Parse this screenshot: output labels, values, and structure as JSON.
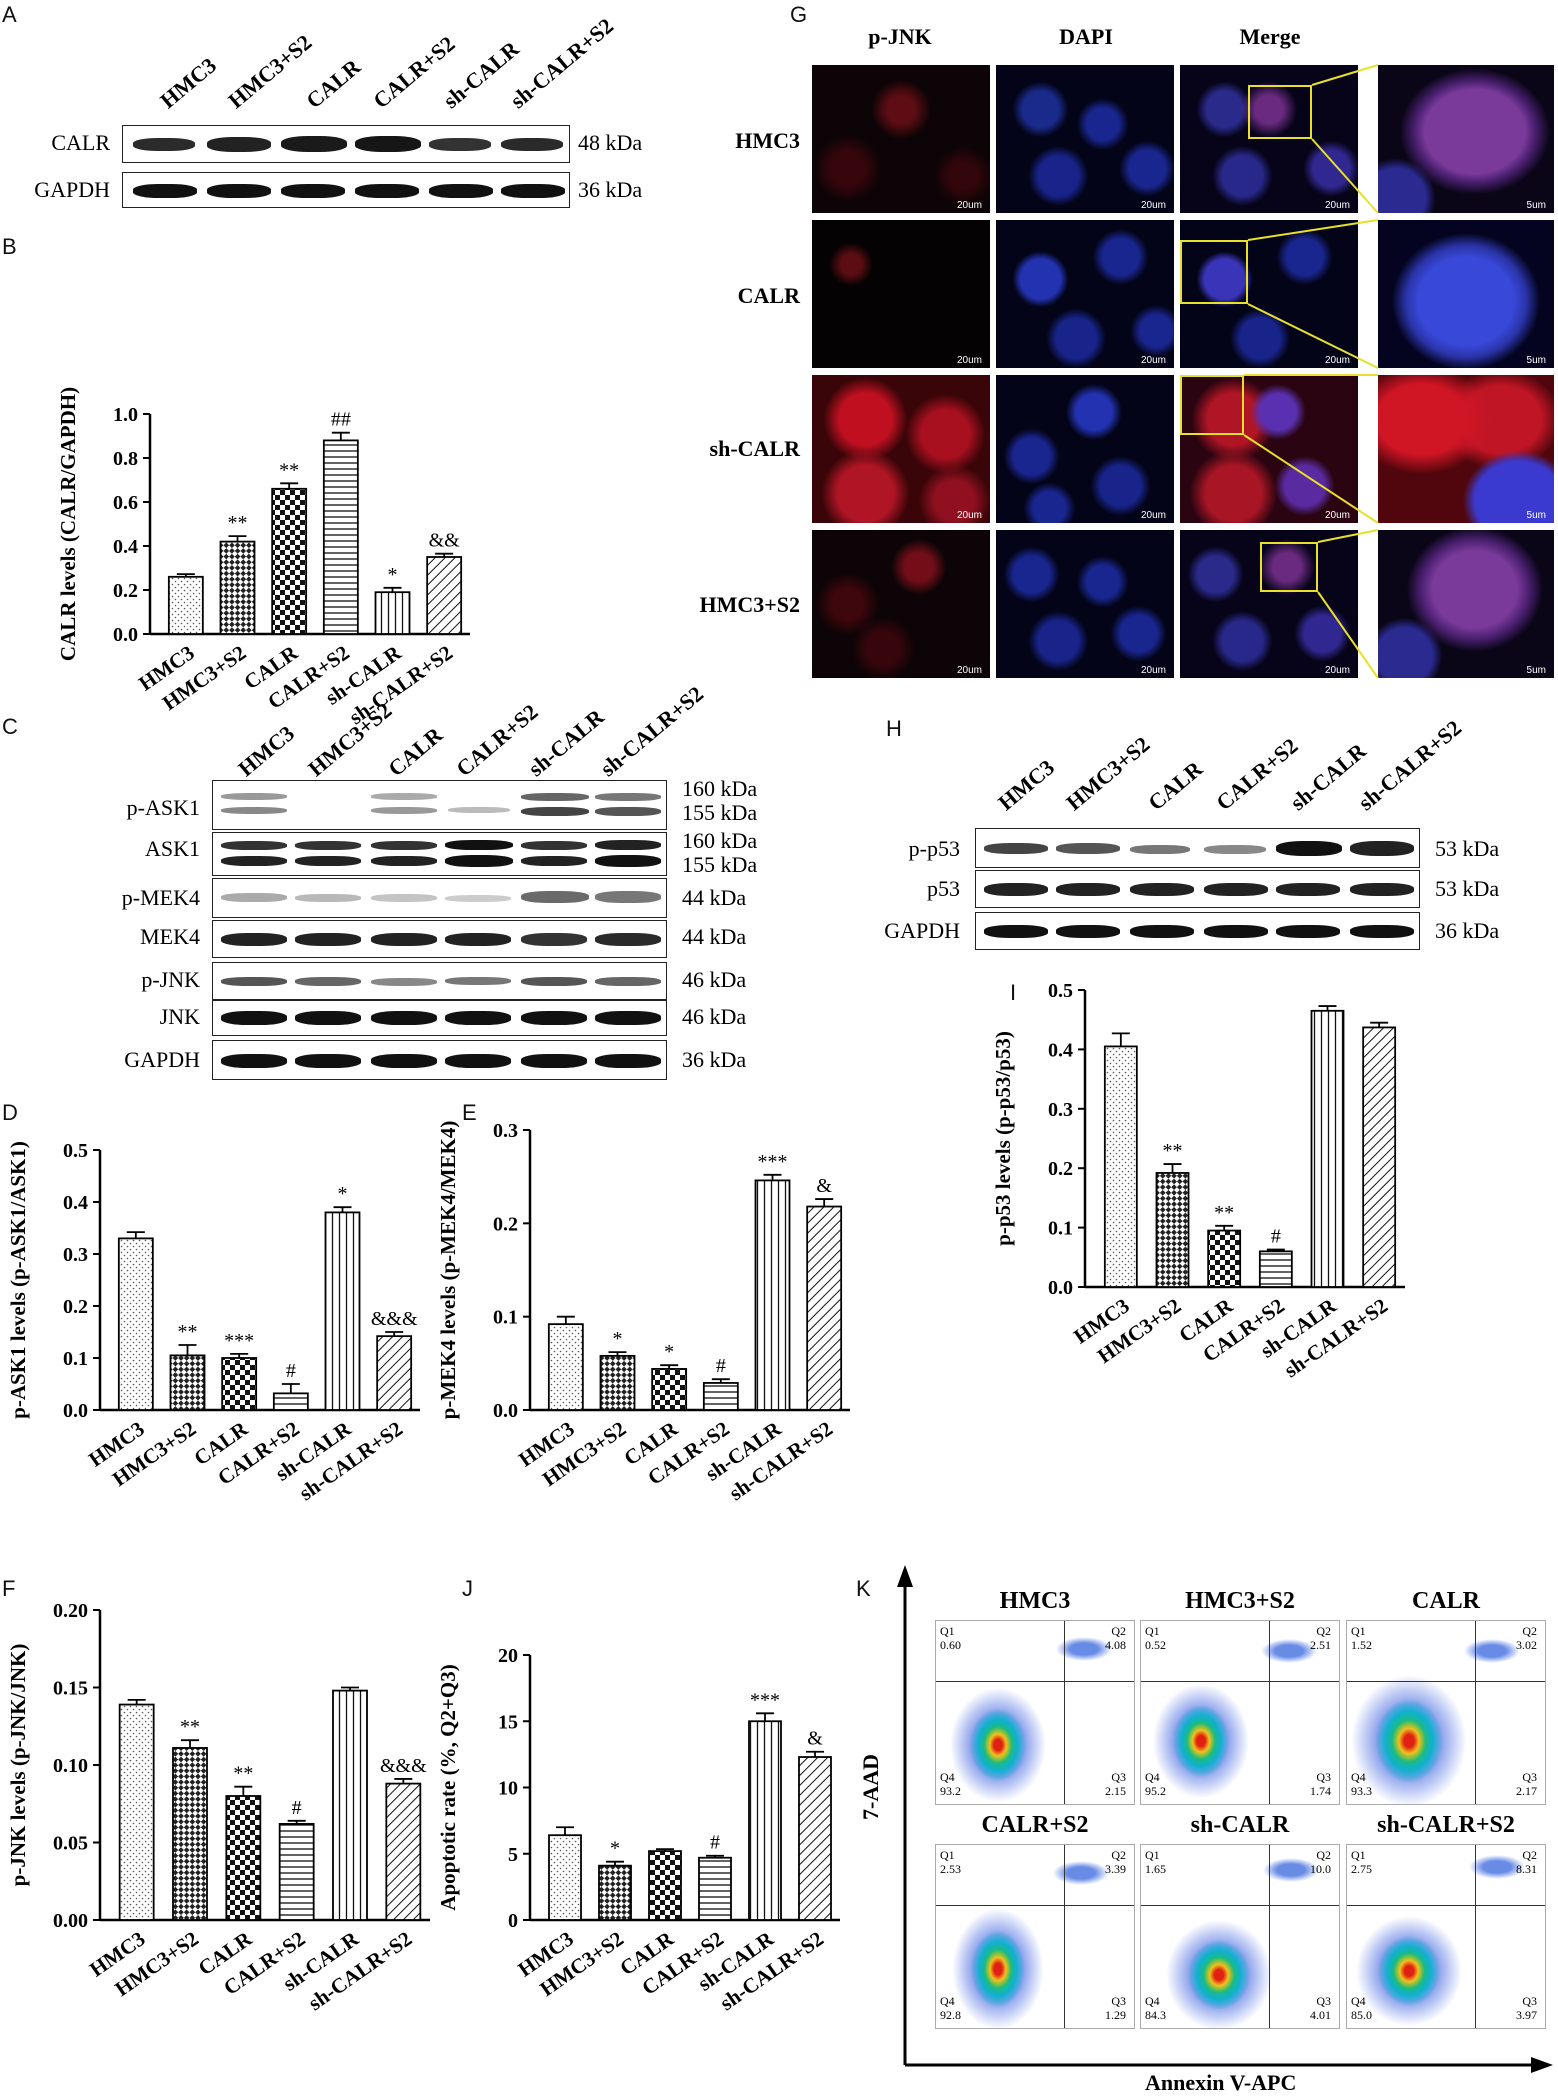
{
  "panels": {
    "A": {
      "letter": "A",
      "lanes": [
        "HMC3",
        "HMC3+S2",
        "CALR",
        "CALR+S2",
        "sh-CALR",
        "sh-CALR+S2"
      ],
      "rows": [
        {
          "name": "CALR",
          "kda": "48 kDa"
        },
        {
          "name": "GAPDH",
          "kda": "36 kDa"
        }
      ]
    },
    "B": {
      "letter": "B"
    },
    "C": {
      "letter": "C",
      "lanes": [
        "HMC3",
        "HMC3+S2",
        "CALR",
        "CALR+S2",
        "sh-CALR",
        "sh-CALR+S2"
      ],
      "rows": [
        {
          "name": "p-ASK1",
          "kda": "160 kDa",
          "kda2": "155 kDa"
        },
        {
          "name": "ASK1",
          "kda": "160 kDa",
          "kda2": "155 kDa"
        },
        {
          "name": "p-MEK4",
          "kda": "44 kDa"
        },
        {
          "name": "MEK4",
          "kda": "44 kDa"
        },
        {
          "name": "p-JNK",
          "kda": "46 kDa"
        },
        {
          "name": "JNK",
          "kda": "46 kDa"
        },
        {
          "name": "GAPDH",
          "kda": "36 kDa"
        }
      ]
    },
    "D": {
      "letter": "D"
    },
    "E": {
      "letter": "E"
    },
    "F": {
      "letter": "F"
    },
    "G": {
      "letter": "G",
      "columns": [
        "p-JNK",
        "DAPI",
        "Merge"
      ],
      "rows": [
        "HMC3",
        "CALR",
        "sh-CALR",
        "HMC3+S2"
      ],
      "scale_main": "20um",
      "scale_zoom": "5um"
    },
    "H": {
      "letter": "H",
      "lanes": [
        "HMC3",
        "HMC3+S2",
        "CALR",
        "CALR+S2",
        "sh-CALR",
        "sh-CALR+S2"
      ],
      "rows": [
        {
          "name": "p-p53",
          "kda": "53 kDa"
        },
        {
          "name": "p53",
          "kda": "53 kDa"
        },
        {
          "name": "GAPDH",
          "kda": "36 kDa"
        }
      ]
    },
    "I": {
      "letter": "I"
    },
    "J": {
      "letter": "J"
    },
    "K": {
      "letter": "K",
      "ylabel": "7-AAD",
      "xlabel": "Annexin V-APC",
      "plots": [
        {
          "title": "HMC3",
          "q1": "0.60",
          "q2": "4.08",
          "q3": "2.15",
          "q4": "93.2"
        },
        {
          "title": "HMC3+S2",
          "q1": "0.52",
          "q2": "2.51",
          "q3": "1.74",
          "q4": "95.2"
        },
        {
          "title": "CALR",
          "q1": "1.52",
          "q2": "3.02",
          "q3": "2.17",
          "q4": "93.3"
        },
        {
          "title": "CALR+S2",
          "q1": "2.53",
          "q2": "3.39",
          "q3": "1.29",
          "q4": "92.8"
        },
        {
          "title": "sh-CALR",
          "q1": "1.65",
          "q2": "10.0",
          "q3": "4.01",
          "q4": "84.3"
        },
        {
          "title": "sh-CALR+S2",
          "q1": "2.75",
          "q2": "8.31",
          "q3": "3.97",
          "q4": "85.0"
        }
      ],
      "quadrant_labels": {
        "q1": "Q1",
        "q2": "Q2",
        "q3": "Q3",
        "q4": "Q4"
      }
    }
  },
  "chart_data": [
    {
      "panel": "B",
      "type": "bar",
      "categories": [
        "HMC3",
        "HMC3+S2",
        "CALR",
        "CALR+S2",
        "sh-CALR",
        "sh-CALR+S2"
      ],
      "values": [
        0.26,
        0.42,
        0.66,
        0.88,
        0.19,
        0.35
      ],
      "errors": [
        0.012,
        0.025,
        0.025,
        0.035,
        0.02,
        0.015
      ],
      "annotations": [
        "",
        "**",
        "**",
        "##",
        "*",
        "&&"
      ],
      "ylabel": "CALR levels (CALR/GAPDH)",
      "ylim": [
        0,
        1.0
      ],
      "yticks": [
        "0.0",
        "0.2",
        "0.4",
        "0.6",
        "0.8",
        "1.0"
      ]
    },
    {
      "panel": "D",
      "type": "bar",
      "categories": [
        "HMC3",
        "HMC3+S2",
        "CALR",
        "CALR+S2",
        "sh-CALR",
        "sh-CALR+S2"
      ],
      "values": [
        0.33,
        0.105,
        0.1,
        0.032,
        0.38,
        0.142
      ],
      "errors": [
        0.012,
        0.02,
        0.008,
        0.018,
        0.01,
        0.008
      ],
      "annotations": [
        "",
        "**",
        "***",
        "#",
        "*",
        "&&&"
      ],
      "ylabel": "p-ASK1 levels (p-ASK1/ASK1)",
      "ylim": [
        0,
        0.5
      ],
      "yticks": [
        "0.0",
        "0.1",
        "0.2",
        "0.3",
        "0.4",
        "0.5"
      ]
    },
    {
      "panel": "E",
      "type": "bar",
      "categories": [
        "HMC3",
        "HMC3+S2",
        "CALR",
        "CALR+S2",
        "sh-CALR",
        "sh-CALR+S2"
      ],
      "values": [
        0.092,
        0.058,
        0.044,
        0.029,
        0.246,
        0.218
      ],
      "errors": [
        0.008,
        0.004,
        0.004,
        0.004,
        0.006,
        0.008
      ],
      "annotations": [
        "",
        "*",
        "*",
        "#",
        "***",
        "&"
      ],
      "ylabel": "p-MEK4 levels (p-MEK4/MEK4)",
      "ylim": [
        0,
        0.3
      ],
      "yticks": [
        "0.0",
        "0.1",
        "0.2",
        "0.3"
      ]
    },
    {
      "panel": "F",
      "type": "bar",
      "categories": [
        "HMC3",
        "HMC3+S2",
        "CALR",
        "CALR+S2",
        "sh-CALR",
        "sh-CALR+S2"
      ],
      "values": [
        0.139,
        0.111,
        0.08,
        0.062,
        0.148,
        0.088
      ],
      "errors": [
        0.003,
        0.005,
        0.006,
        0.002,
        0.002,
        0.003
      ],
      "annotations": [
        "",
        "**",
        "**",
        "#",
        "",
        "&&&"
      ],
      "ylabel": "p-JNK levels (p-JNK/JNK)",
      "ylim": [
        0,
        0.2
      ],
      "yticks": [
        "0.00",
        "0.05",
        "0.10",
        "0.15",
        "0.20"
      ]
    },
    {
      "panel": "I",
      "type": "bar",
      "categories": [
        "HMC3",
        "HMC3+S2",
        "CALR",
        "CALR+S2",
        "sh-CALR",
        "sh-CALR+S2"
      ],
      "values": [
        0.405,
        0.192,
        0.095,
        0.06,
        0.465,
        0.437
      ],
      "errors": [
        0.022,
        0.015,
        0.008,
        0.003,
        0.008,
        0.008
      ],
      "annotations": [
        "",
        "**",
        "**",
        "#",
        "",
        ""
      ],
      "ylabel": "p-p53 levels (p-p53/p53)",
      "ylim": [
        0,
        0.5
      ],
      "yticks": [
        "0.0",
        "0.1",
        "0.2",
        "0.3",
        "0.4",
        "0.5"
      ]
    },
    {
      "panel": "J",
      "type": "bar",
      "categories": [
        "HMC3",
        "HMC3+S2",
        "CALR",
        "CALR+S2",
        "sh-CALR",
        "sh-CALR+S2"
      ],
      "values": [
        6.4,
        4.1,
        5.2,
        4.7,
        15.0,
        12.3
      ],
      "errors": [
        0.6,
        0.3,
        0.15,
        0.15,
        0.6,
        0.4
      ],
      "annotations": [
        "",
        "*",
        "",
        "#",
        "***",
        "&"
      ],
      "ylabel": "Apoptotic rate (%, Q2+Q3)",
      "ylim": [
        0,
        20
      ],
      "yticks": [
        "0",
        "5",
        "10",
        "15",
        "20"
      ]
    }
  ]
}
